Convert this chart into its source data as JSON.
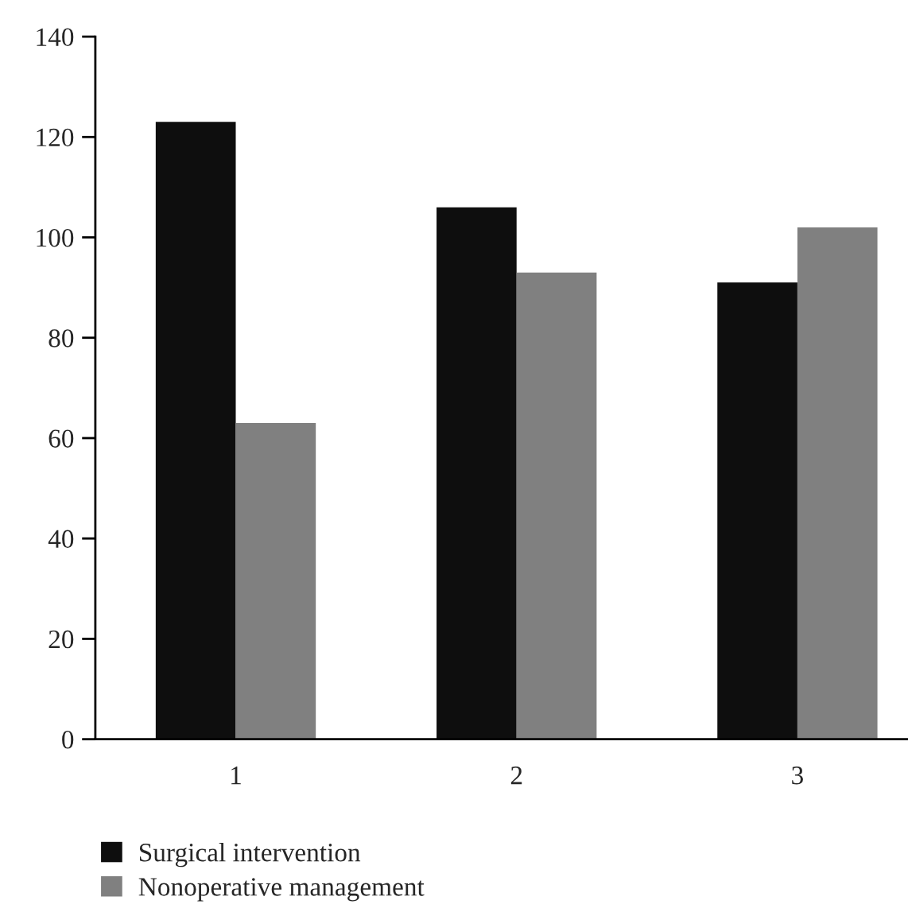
{
  "chart_data": {
    "type": "bar",
    "categories": [
      "1",
      "2",
      "3"
    ],
    "series": [
      {
        "name": "Surgical intervention",
        "color": "#0e0e0e",
        "values": [
          123,
          106,
          91
        ]
      },
      {
        "name": "Nonoperative management",
        "color": "#808080",
        "values": [
          63,
          93,
          102
        ]
      }
    ],
    "ylim": [
      0,
      140
    ],
    "yticks": [
      0,
      20,
      40,
      60,
      80,
      100,
      120,
      140
    ],
    "grid": false,
    "legend": "bottom left"
  }
}
